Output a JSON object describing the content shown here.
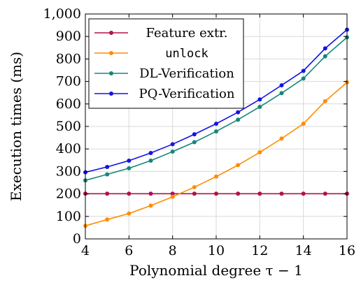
{
  "chart_data": {
    "type": "line",
    "xlabel": "Polynomial degree τ − 1",
    "ylabel": "Execution times (ms)",
    "xlim": [
      4,
      16
    ],
    "ylim": [
      0,
      1000
    ],
    "x_ticks": [
      4,
      6,
      8,
      10,
      12,
      14,
      16
    ],
    "y_ticks": [
      0,
      100,
      200,
      300,
      400,
      500,
      600,
      700,
      800,
      900,
      1000
    ],
    "y_tick_labels": [
      "0",
      "100",
      "200",
      "300",
      "400",
      "500",
      "600",
      "700",
      "800",
      "900",
      "1,000"
    ],
    "x": [
      4,
      5,
      6,
      7,
      8,
      9,
      10,
      11,
      12,
      13,
      14,
      15,
      16
    ],
    "grid": true,
    "legend_position": "top-left",
    "series": [
      {
        "name": "Feature extr.",
        "color": "#b0124f",
        "mono": false,
        "values": [
          201,
          201,
          201,
          201,
          201,
          201,
          201,
          201,
          201,
          201,
          201,
          201,
          201
        ]
      },
      {
        "name": "unlock",
        "color": "#ff8c00",
        "mono": true,
        "values": [
          58,
          86,
          113,
          148,
          187,
          230,
          277,
          328,
          385,
          446,
          512,
          612,
          696
        ]
      },
      {
        "name": "DL-Verification",
        "color": "#12877a",
        "mono": false,
        "values": [
          260,
          287,
          314,
          348,
          388,
          430,
          478,
          530,
          587,
          648,
          713,
          812,
          896
        ]
      },
      {
        "name": "PQ-Verification",
        "color": "#1414e6",
        "mono": false,
        "values": [
          296,
          320,
          348,
          382,
          421,
          465,
          512,
          563,
          620,
          683,
          747,
          847,
          930
        ]
      }
    ]
  }
}
